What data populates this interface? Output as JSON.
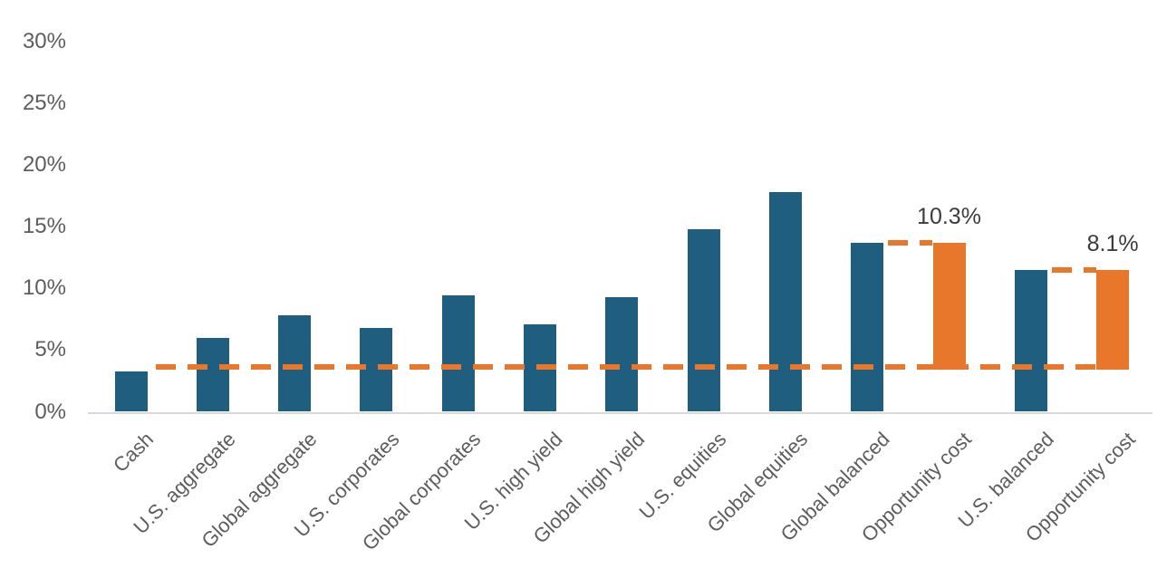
{
  "chart_data": {
    "type": "bar",
    "title": "",
    "xlabel": "",
    "ylabel": "",
    "grid": false,
    "legend": null,
    "y_axis": {
      "min": 0,
      "max": 30,
      "tick_step": 5,
      "tick_labels": [
        "0%",
        "5%",
        "10%",
        "15%",
        "20%",
        "25%",
        "30%"
      ]
    },
    "bars": [
      {
        "category": "Cash",
        "value": 3.3,
        "base": 0,
        "series": "asset"
      },
      {
        "category": "U.S. aggregate",
        "value": 6.0,
        "base": 0,
        "series": "asset"
      },
      {
        "category": "Global aggregate",
        "value": 7.8,
        "base": 0,
        "series": "asset"
      },
      {
        "category": "U.S. corporates",
        "value": 6.8,
        "base": 0,
        "series": "asset"
      },
      {
        "category": "Global corporates",
        "value": 9.4,
        "base": 0,
        "series": "asset"
      },
      {
        "category": "U.S. high yield",
        "value": 7.1,
        "base": 0,
        "series": "asset"
      },
      {
        "category": "Global high yield",
        "value": 9.3,
        "base": 0,
        "series": "asset"
      },
      {
        "category": "U.S. equities",
        "value": 14.8,
        "base": 0,
        "series": "asset"
      },
      {
        "category": "Global equities",
        "value": 17.8,
        "base": 0,
        "series": "asset"
      },
      {
        "category": "Global balanced",
        "value": 13.7,
        "base": 0,
        "series": "asset"
      },
      {
        "category": "Opportunity cost",
        "value": 13.7,
        "base": 3.4,
        "series": "opportunity",
        "data_label": "10.3%",
        "connector_from_prev": true
      },
      {
        "category": "U.S. balanced",
        "value": 11.5,
        "base": 0,
        "series": "asset"
      },
      {
        "category": "Opportunity cost",
        "value": 11.5,
        "base": 3.4,
        "series": "opportunity",
        "data_label": "8.1%",
        "connector_from_prev": true
      }
    ],
    "baseline": {
      "value": 3.65,
      "style": "dashed",
      "series": "opportunity",
      "starts_after_category": "Cash",
      "ends_at_category": "Opportunity cost"
    },
    "colors": {
      "asset": "#1f5e7e",
      "opportunity": "#e8772c",
      "axis_line": "#d9d9d9",
      "tick_text": "#5d5d5d",
      "data_label_text": "#3c3c3c"
    }
  }
}
